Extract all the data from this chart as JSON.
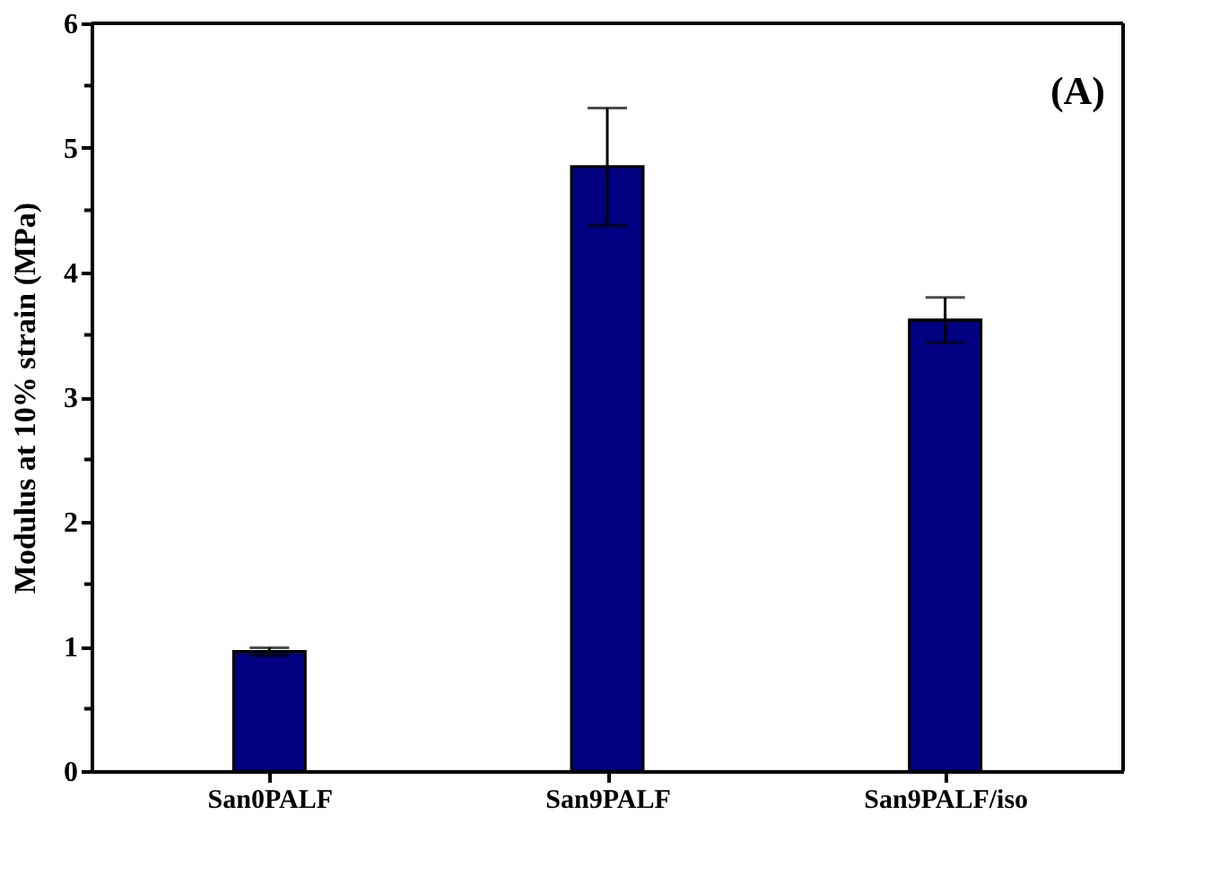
{
  "chart_data": {
    "type": "bar",
    "ylabel": "Modulus at 10% strain (MPa)",
    "categories": [
      "San0PALF",
      "San9PALF",
      "San9PALF/iso"
    ],
    "values": [
      0.96,
      4.85,
      3.62
    ],
    "errors": [
      0.03,
      0.47,
      0.18
    ],
    "color": "#000080",
    "ylim": [
      0,
      6
    ],
    "yticks": [
      0,
      {
        "value": 0.5,
        "label": null
      },
      1,
      {
        "value": 1.5,
        "label": null
      },
      2,
      {
        "value": 2.5,
        "label": null
      },
      3,
      {
        "value": 3.5,
        "label": null
      },
      4,
      {
        "value": 4.5,
        "label": null
      },
      5,
      {
        "value": 5.5,
        "label": null
      },
      6
    ],
    "grid": false,
    "annotations": [
      "(A)"
    ]
  }
}
